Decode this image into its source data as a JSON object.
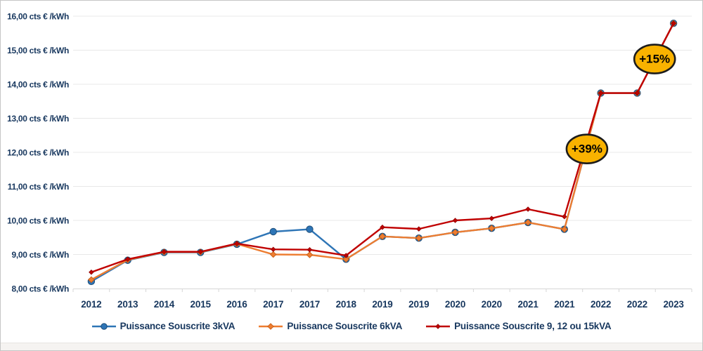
{
  "figure": {
    "background": "#FFFFFF",
    "border_color": "#C6C6C6"
  },
  "chart_data": {
    "type": "line",
    "title": "",
    "unit": "cts € /kWh",
    "categories": [
      "2012",
      "2013",
      "2014",
      "2015",
      "2016",
      "2017",
      "2017",
      "2018",
      "2019",
      "2019",
      "2020",
      "2020",
      "2021",
      "2021",
      "2022",
      "2022",
      "2023"
    ],
    "series": [
      {
        "name": "Puissance Souscrite 3kVA",
        "color": "#2E75B6",
        "marker": "circle",
        "values": [
          8.21,
          8.83,
          9.06,
          9.06,
          9.3,
          9.67,
          9.74,
          8.86,
          9.53,
          9.48,
          9.65,
          9.77,
          9.94,
          9.74,
          13.74,
          13.74,
          15.79
        ]
      },
      {
        "name": "Puissance Souscrite 6kVA",
        "color": "#ED7D31",
        "marker": "diamond",
        "values": [
          8.26,
          8.84,
          9.07,
          9.07,
          9.31,
          9.0,
          8.99,
          8.86,
          9.53,
          9.48,
          9.65,
          9.77,
          9.94,
          9.74,
          13.74,
          13.74,
          15.79
        ]
      },
      {
        "name": "Puissance Souscrite 9, 12 ou 15kVA",
        "color": "#C00000",
        "marker": "diamond-small",
        "values": [
          8.48,
          8.86,
          9.08,
          9.08,
          9.32,
          9.15,
          9.14,
          8.97,
          9.8,
          9.75,
          10.0,
          10.06,
          10.33,
          10.11,
          13.74,
          13.74,
          15.79
        ]
      }
    ],
    "ylim": [
      8,
      16
    ],
    "ytick_step": 1,
    "ytick_labels": [
      "8,00 cts € /kWh",
      "9,00 cts € /kWh",
      "10,00 cts € /kWh",
      "11,00 cts € /kWh",
      "12,00 cts € /kWh",
      "13,00 cts € /kWh",
      "14,00 cts € /kWh",
      "15,00 cts € /kWh",
      "16,00 cts € /kWh"
    ],
    "grid": true,
    "legend_position": "bottom",
    "axis_text_color": "#17375E",
    "gridline_color": "#E8E8E8",
    "axis_line_color": "#D6D6D6",
    "annotations": [
      {
        "label": "+39%",
        "x_index": 13.62,
        "value": 12.1,
        "fill": "#F9B200",
        "stroke": "#1C1C1C",
        "text_color": "#000000"
      },
      {
        "label": "+15%",
        "x_index": 15.48,
        "value": 14.74,
        "fill": "#F9B200",
        "stroke": "#1C1C1C",
        "text_color": "#000000"
      }
    ]
  }
}
